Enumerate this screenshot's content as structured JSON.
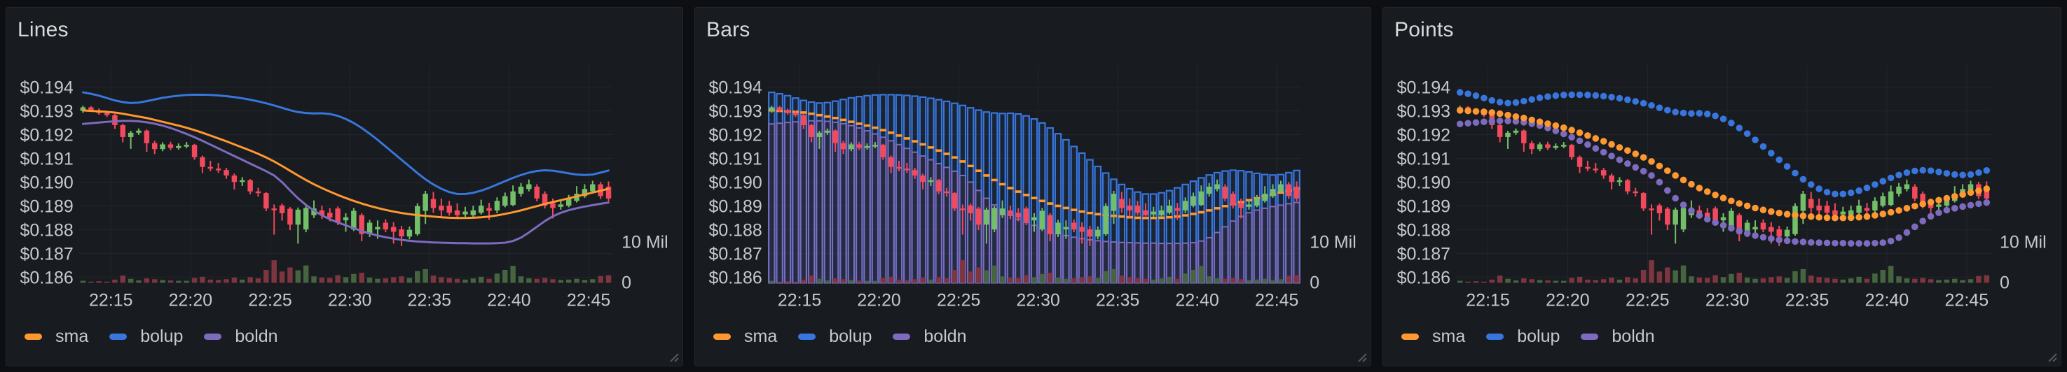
{
  "panels": [
    {
      "title": "Lines",
      "style": "line"
    },
    {
      "title": "Bars",
      "style": "bars"
    },
    {
      "title": "Points",
      "style": "points"
    }
  ],
  "legend": {
    "items": [
      {
        "label": "sma",
        "color": "#ff9830"
      },
      {
        "label": "bolup",
        "color": "#3876dd"
      },
      {
        "label": "boldn",
        "color": "#7d6bbf"
      }
    ]
  },
  "axes": {
    "y_ticks": [
      "$0.194",
      "$0.193",
      "$0.192",
      "$0.191",
      "$0.190",
      "$0.189",
      "$0.188",
      "$0.187",
      "$0.186"
    ],
    "y_values": [
      0.194,
      0.193,
      0.192,
      0.191,
      0.19,
      0.189,
      0.188,
      0.187,
      0.186
    ],
    "x_ticks": [
      {
        "label": "22:15",
        "index": 4
      },
      {
        "label": "22:20",
        "index": 14
      },
      {
        "label": "22:25",
        "index": 24
      },
      {
        "label": "22:30",
        "index": 34
      },
      {
        "label": "22:35",
        "index": 44
      },
      {
        "label": "22:40",
        "index": 54
      },
      {
        "label": "22:45",
        "index": 64
      }
    ],
    "right_ticks": [
      {
        "label": "10 Mil",
        "mil": 10
      },
      {
        "label": "0",
        "mil": 0
      }
    ]
  },
  "colors": {
    "page_bg": "#0e0f13",
    "panel_bg": "#181b1f",
    "panel_border": "#23262b",
    "grid": "#24262d",
    "axis_text": "#c7c8d1",
    "title_text": "#d8d9da",
    "candle_up": "#73bf69",
    "candle_down": "#f2495c",
    "volume_up": "#44653f",
    "volume_down": "#7d3540",
    "resize_handle": "#565860"
  },
  "chart_data": {
    "type": "candlestick",
    "time_start": "22:13:00",
    "interval_seconds": 30,
    "ylim": [
      0.18576,
      0.1945
    ],
    "volume_axis": {
      "unit": "Mil",
      "ticks": [
        0,
        10
      ]
    },
    "candles": [
      [
        0.193,
        0.19322,
        0.19292,
        0.19315,
        0.5
      ],
      [
        0.19315,
        0.1932,
        0.19295,
        0.19302,
        0.3
      ],
      [
        0.19302,
        0.1931,
        0.19284,
        0.19291,
        0.4
      ],
      [
        0.19291,
        0.193,
        0.19274,
        0.19282,
        0.3
      ],
      [
        0.19282,
        0.19288,
        0.19224,
        0.1924,
        0.8
      ],
      [
        0.1924,
        0.19246,
        0.19168,
        0.1919,
        1.8
      ],
      [
        0.1919,
        0.19216,
        0.1914,
        0.19208,
        1.0
      ],
      [
        0.19208,
        0.19226,
        0.19199,
        0.19217,
        0.6
      ],
      [
        0.19217,
        0.19222,
        0.19128,
        0.19164,
        1.1
      ],
      [
        0.19164,
        0.19174,
        0.19118,
        0.19139,
        0.9
      ],
      [
        0.19139,
        0.19168,
        0.1913,
        0.19159,
        0.7
      ],
      [
        0.19159,
        0.1917,
        0.19135,
        0.19144,
        0.6
      ],
      [
        0.19144,
        0.19163,
        0.19137,
        0.19152,
        0.5
      ],
      [
        0.19152,
        0.19169,
        0.19143,
        0.19157,
        0.5
      ],
      [
        0.19157,
        0.19161,
        0.19094,
        0.19105,
        1.2
      ],
      [
        0.19105,
        0.19112,
        0.19038,
        0.19064,
        1.5
      ],
      [
        0.19064,
        0.1909,
        0.19046,
        0.19057,
        0.8
      ],
      [
        0.19057,
        0.19081,
        0.19039,
        0.19051,
        0.7
      ],
      [
        0.19051,
        0.1906,
        0.19014,
        0.19028,
        0.9
      ],
      [
        0.19028,
        0.19036,
        0.18969,
        0.19001,
        1.3
      ],
      [
        0.19001,
        0.19021,
        0.18984,
        0.19008,
        0.8
      ],
      [
        0.19008,
        0.19013,
        0.18949,
        0.18961,
        1.4
      ],
      [
        0.18961,
        0.18976,
        0.18939,
        0.18954,
        1.1
      ],
      [
        0.18954,
        0.18958,
        0.18878,
        0.18889,
        3.2
      ],
      [
        0.18889,
        0.18906,
        0.18779,
        0.18884,
        5.6
      ],
      [
        0.18902,
        0.1891,
        0.18838,
        0.18869,
        2.8
      ],
      [
        0.18888,
        0.18895,
        0.18798,
        0.18821,
        3.8
      ],
      [
        0.18821,
        0.18893,
        0.18741,
        0.18884,
        3.1
      ],
      [
        0.18801,
        0.18899,
        0.18789,
        0.18891,
        4.3
      ],
      [
        0.18861,
        0.18923,
        0.18849,
        0.18889,
        1.6
      ],
      [
        0.18881,
        0.18901,
        0.18845,
        0.18861,
        1.3
      ],
      [
        0.18871,
        0.18891,
        0.18835,
        0.18851,
        1.2
      ],
      [
        0.18889,
        0.18897,
        0.18819,
        0.18831,
        1.9
      ],
      [
        0.18839,
        0.18869,
        0.18791,
        0.18852,
        1.4
      ],
      [
        0.18801,
        0.18891,
        0.18794,
        0.18879,
        2.2
      ],
      [
        0.18861,
        0.18869,
        0.18751,
        0.18781,
        2.5
      ],
      [
        0.18781,
        0.18841,
        0.18769,
        0.18829,
        1.3
      ],
      [
        0.18801,
        0.18839,
        0.18761,
        0.18811,
        1.0
      ],
      [
        0.18829,
        0.18843,
        0.18789,
        0.18801,
        1.1
      ],
      [
        0.18811,
        0.18831,
        0.18741,
        0.18791,
        1.4
      ],
      [
        0.18801,
        0.18816,
        0.18731,
        0.18771,
        1.6
      ],
      [
        0.18771,
        0.18813,
        0.18759,
        0.18799,
        1.2
      ],
      [
        0.18781,
        0.18911,
        0.18774,
        0.18899,
        2.9
      ],
      [
        0.18879,
        0.18963,
        0.18824,
        0.18951,
        3.4
      ],
      [
        0.18929,
        0.18959,
        0.18871,
        0.18891,
        1.8
      ],
      [
        0.18901,
        0.18931,
        0.18851,
        0.18881,
        1.4
      ],
      [
        0.18901,
        0.18921,
        0.18859,
        0.18871,
        1.2
      ],
      [
        0.18881,
        0.18911,
        0.18849,
        0.18861,
        1.0
      ],
      [
        0.18864,
        0.18896,
        0.18854,
        0.18876,
        0.8
      ],
      [
        0.18861,
        0.18901,
        0.18851,
        0.18881,
        1.1
      ],
      [
        0.18871,
        0.18926,
        0.18864,
        0.18901,
        1.5
      ],
      [
        0.18891,
        0.18913,
        0.18841,
        0.18879,
        1.0
      ],
      [
        0.18881,
        0.18936,
        0.18869,
        0.18921,
        2.3
      ],
      [
        0.18901,
        0.18956,
        0.18894,
        0.18941,
        3.2
      ],
      [
        0.18904,
        0.18986,
        0.18899,
        0.18961,
        4.2
      ],
      [
        0.18951,
        0.18996,
        0.18939,
        0.18981,
        1.6
      ],
      [
        0.18971,
        0.19011,
        0.18961,
        0.18991,
        1.1
      ],
      [
        0.18981,
        0.18991,
        0.18919,
        0.18931,
        1.0
      ],
      [
        0.18951,
        0.18961,
        0.18889,
        0.18901,
        1.2
      ],
      [
        0.18911,
        0.18931,
        0.18847,
        0.18891,
        0.9
      ],
      [
        0.18896,
        0.18926,
        0.18884,
        0.18906,
        0.7
      ],
      [
        0.18901,
        0.18946,
        0.18894,
        0.18931,
        0.8
      ],
      [
        0.18921,
        0.18983,
        0.18914,
        0.18951,
        1.0
      ],
      [
        0.18941,
        0.18991,
        0.18934,
        0.18971,
        0.7
      ],
      [
        0.18961,
        0.19006,
        0.18954,
        0.18991,
        0.9
      ],
      [
        0.18991,
        0.19001,
        0.18929,
        0.18941,
        1.7
      ],
      [
        0.18981,
        0.19003,
        0.18919,
        0.18931,
        1.9
      ]
    ],
    "series": [
      {
        "name": "sma",
        "color": "#ff9830",
        "values": [
          0.19302,
          0.193,
          0.19298,
          0.19296,
          0.19293,
          0.19288,
          0.19282,
          0.19276,
          0.1927,
          0.19262,
          0.19254,
          0.19246,
          0.19238,
          0.19229,
          0.19219,
          0.19208,
          0.19196,
          0.19184,
          0.19172,
          0.19159,
          0.19146,
          0.19133,
          0.19119,
          0.19104,
          0.19087,
          0.19068,
          0.19048,
          0.19028,
          0.19009,
          0.18991,
          0.18975,
          0.1896,
          0.18946,
          0.18933,
          0.18921,
          0.1891,
          0.189,
          0.18891,
          0.18883,
          0.18876,
          0.1887,
          0.18865,
          0.18861,
          0.18858,
          0.18855,
          0.18852,
          0.1885,
          0.18849,
          0.18849,
          0.1885,
          0.18852,
          0.18855,
          0.1886,
          0.18866,
          0.18873,
          0.18881,
          0.1889,
          0.18899,
          0.18908,
          0.18916,
          0.18924,
          0.18932,
          0.1894,
          0.18948,
          0.18956,
          0.18964,
          0.18972
        ]
      },
      {
        "name": "bolup",
        "color": "#3876dd",
        "values": [
          0.19378,
          0.19372,
          0.19364,
          0.19354,
          0.19344,
          0.19337,
          0.19333,
          0.19335,
          0.19341,
          0.19348,
          0.19355,
          0.1936,
          0.19364,
          0.19367,
          0.19368,
          0.19368,
          0.19367,
          0.19365,
          0.19362,
          0.19358,
          0.19353,
          0.19347,
          0.1934,
          0.19332,
          0.19323,
          0.19313,
          0.19303,
          0.19295,
          0.19291,
          0.19289,
          0.1929,
          0.19287,
          0.19279,
          0.19266,
          0.19249,
          0.19228,
          0.19204,
          0.19178,
          0.1915,
          0.19122,
          0.19094,
          0.19066,
          0.19038,
          0.19012,
          0.1899,
          0.18972,
          0.18958,
          0.1895,
          0.1895,
          0.18955,
          0.18964,
          0.18976,
          0.1899,
          0.19004,
          0.19018,
          0.1903,
          0.1904,
          0.19047,
          0.1905,
          0.19048,
          0.19043,
          0.19037,
          0.19032,
          0.1903,
          0.19032,
          0.1904,
          0.19049
        ]
      },
      {
        "name": "boldn",
        "color": "#7d6bbf",
        "values": [
          0.19245,
          0.19248,
          0.19251,
          0.19254,
          0.19256,
          0.19258,
          0.19258,
          0.19256,
          0.19252,
          0.19246,
          0.19238,
          0.19228,
          0.19216,
          0.19203,
          0.19189,
          0.19174,
          0.19158,
          0.19142,
          0.19126,
          0.1911,
          0.19094,
          0.19078,
          0.19062,
          0.19046,
          0.19028,
          0.19,
          0.18965,
          0.18932,
          0.18904,
          0.1888,
          0.1886,
          0.18844,
          0.1883,
          0.18818,
          0.18806,
          0.18794,
          0.18784,
          0.18775,
          0.18768,
          0.18762,
          0.18757,
          0.18753,
          0.1875,
          0.18748,
          0.18746,
          0.18745,
          0.18744,
          0.18743,
          0.18743,
          0.18742,
          0.18742,
          0.18742,
          0.18743,
          0.18745,
          0.18752,
          0.18766,
          0.18788,
          0.18812,
          0.18836,
          0.18856,
          0.18871,
          0.18882,
          0.1889,
          0.18897,
          0.18903,
          0.18909,
          0.18914
        ]
      }
    ]
  }
}
